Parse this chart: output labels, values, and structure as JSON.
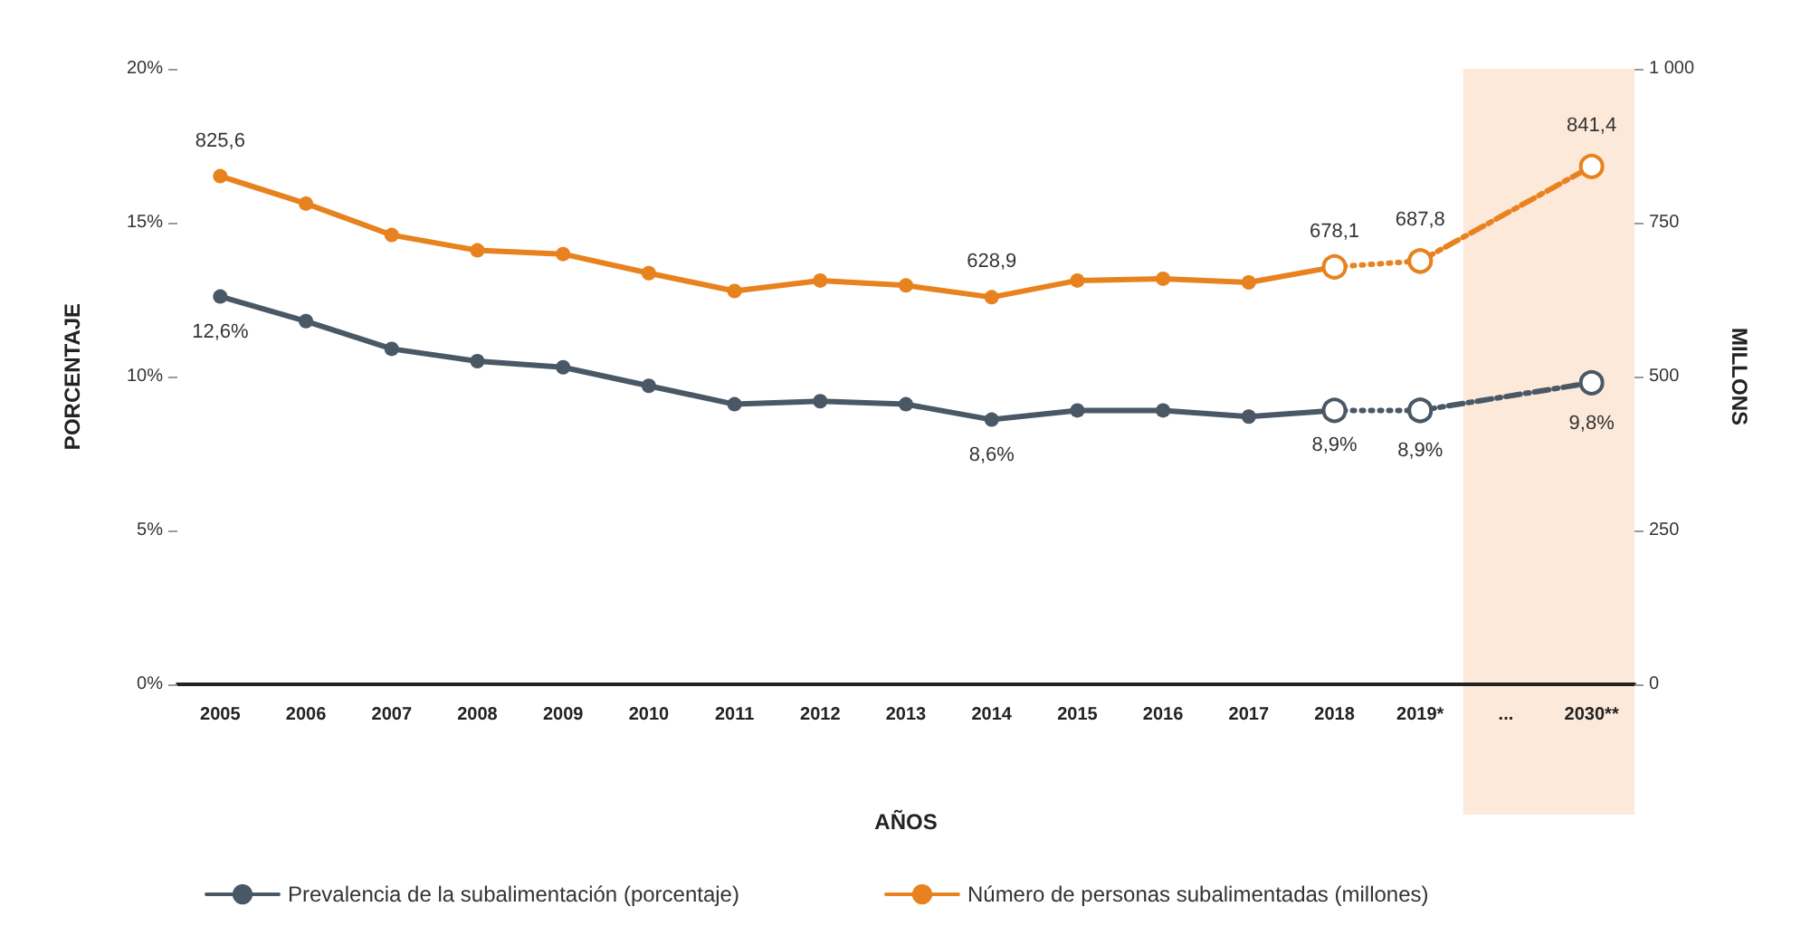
{
  "chart_data": {
    "type": "line",
    "categories": [
      "2005",
      "2006",
      "2007",
      "2008",
      "2009",
      "2010",
      "2011",
      "2012",
      "2013",
      "2014",
      "2015",
      "2016",
      "2017",
      "2018",
      "2019*",
      "...",
      "2030**"
    ],
    "series": [
      {
        "name": "Prevalencia de la subalimentación (porcentaje)",
        "color": "#4a5866",
        "line_style": "solid",
        "values": [
          12.6,
          11.8,
          10.9,
          10.5,
          10.3,
          9.7,
          9.1,
          9.2,
          9.1,
          8.6,
          8.9,
          8.9,
          8.7,
          8.9,
          null,
          null,
          null
        ],
        "value_labels": [
          "12,6%",
          null,
          null,
          null,
          null,
          null,
          null,
          null,
          null,
          "8,6%",
          null,
          null,
          null,
          "8,9%",
          null,
          null,
          null
        ]
      },
      {
        "color": "#4a5866",
        "line_style": "dotted",
        "values": [
          null,
          null,
          null,
          null,
          null,
          null,
          null,
          null,
          null,
          null,
          null,
          null,
          null,
          8.9,
          8.9,
          null,
          null
        ]
      },
      {
        "color": "#4a5866",
        "line_style": "dashed",
        "values": [
          null,
          null,
          null,
          null,
          null,
          null,
          null,
          null,
          null,
          null,
          null,
          null,
          null,
          null,
          8.9,
          null,
          9.8
        ],
        "value_labels": [
          null,
          null,
          null,
          null,
          null,
          null,
          null,
          null,
          null,
          null,
          null,
          null,
          null,
          null,
          "8,9%",
          null,
          "9,8%"
        ]
      },
      {
        "name": "Número de personas subalimentadas (millones)",
        "color": "#e8821e",
        "axis": "y2",
        "line_style": "solid",
        "values": [
          825.6,
          781,
          730,
          705,
          699,
          668,
          639,
          656,
          648,
          628.9,
          656,
          659,
          653,
          678.1,
          null,
          null,
          null
        ],
        "value_labels": [
          "825,6",
          null,
          null,
          null,
          null,
          null,
          null,
          null,
          null,
          "628,9",
          null,
          null,
          null,
          "678,1",
          null,
          null,
          null
        ]
      },
      {
        "color": "#e8821e",
        "axis": "y2",
        "line_style": "dotted",
        "values": [
          null,
          null,
          null,
          null,
          null,
          null,
          null,
          null,
          null,
          null,
          null,
          null,
          null,
          678.1,
          687.8,
          null,
          null
        ]
      },
      {
        "color": "#e8821e",
        "axis": "y2",
        "line_style": "dashed",
        "values": [
          null,
          null,
          null,
          null,
          null,
          null,
          null,
          null,
          null,
          null,
          null,
          null,
          null,
          null,
          687.8,
          null,
          841.4
        ],
        "value_labels": [
          null,
          null,
          null,
          null,
          null,
          null,
          null,
          null,
          null,
          null,
          null,
          null,
          null,
          null,
          "687,8",
          null,
          "841,4"
        ]
      }
    ],
    "xlabel": "AÑOS",
    "ylabel": "PORCENTAJE",
    "y2label": "MILLONS",
    "ylim": [
      0,
      20
    ],
    "yticks": [
      {
        "value": 0,
        "label": "0%"
      },
      {
        "value": 5,
        "label": "5%"
      },
      {
        "value": 10,
        "label": "10%"
      },
      {
        "value": 15,
        "label": "15%"
      },
      {
        "value": 20,
        "label": "20%"
      }
    ],
    "y2lim": [
      0,
      1000
    ],
    "y2ticks": [
      0,
      250,
      500,
      750,
      {
        "value": 1000,
        "label": "1 000"
      }
    ],
    "bands": [
      {
        "axis": "x",
        "from": "...",
        "to": "2030**",
        "color": "#fde9d9"
      }
    ],
    "marker": "circle",
    "grid": false,
    "legend": "bottom"
  }
}
